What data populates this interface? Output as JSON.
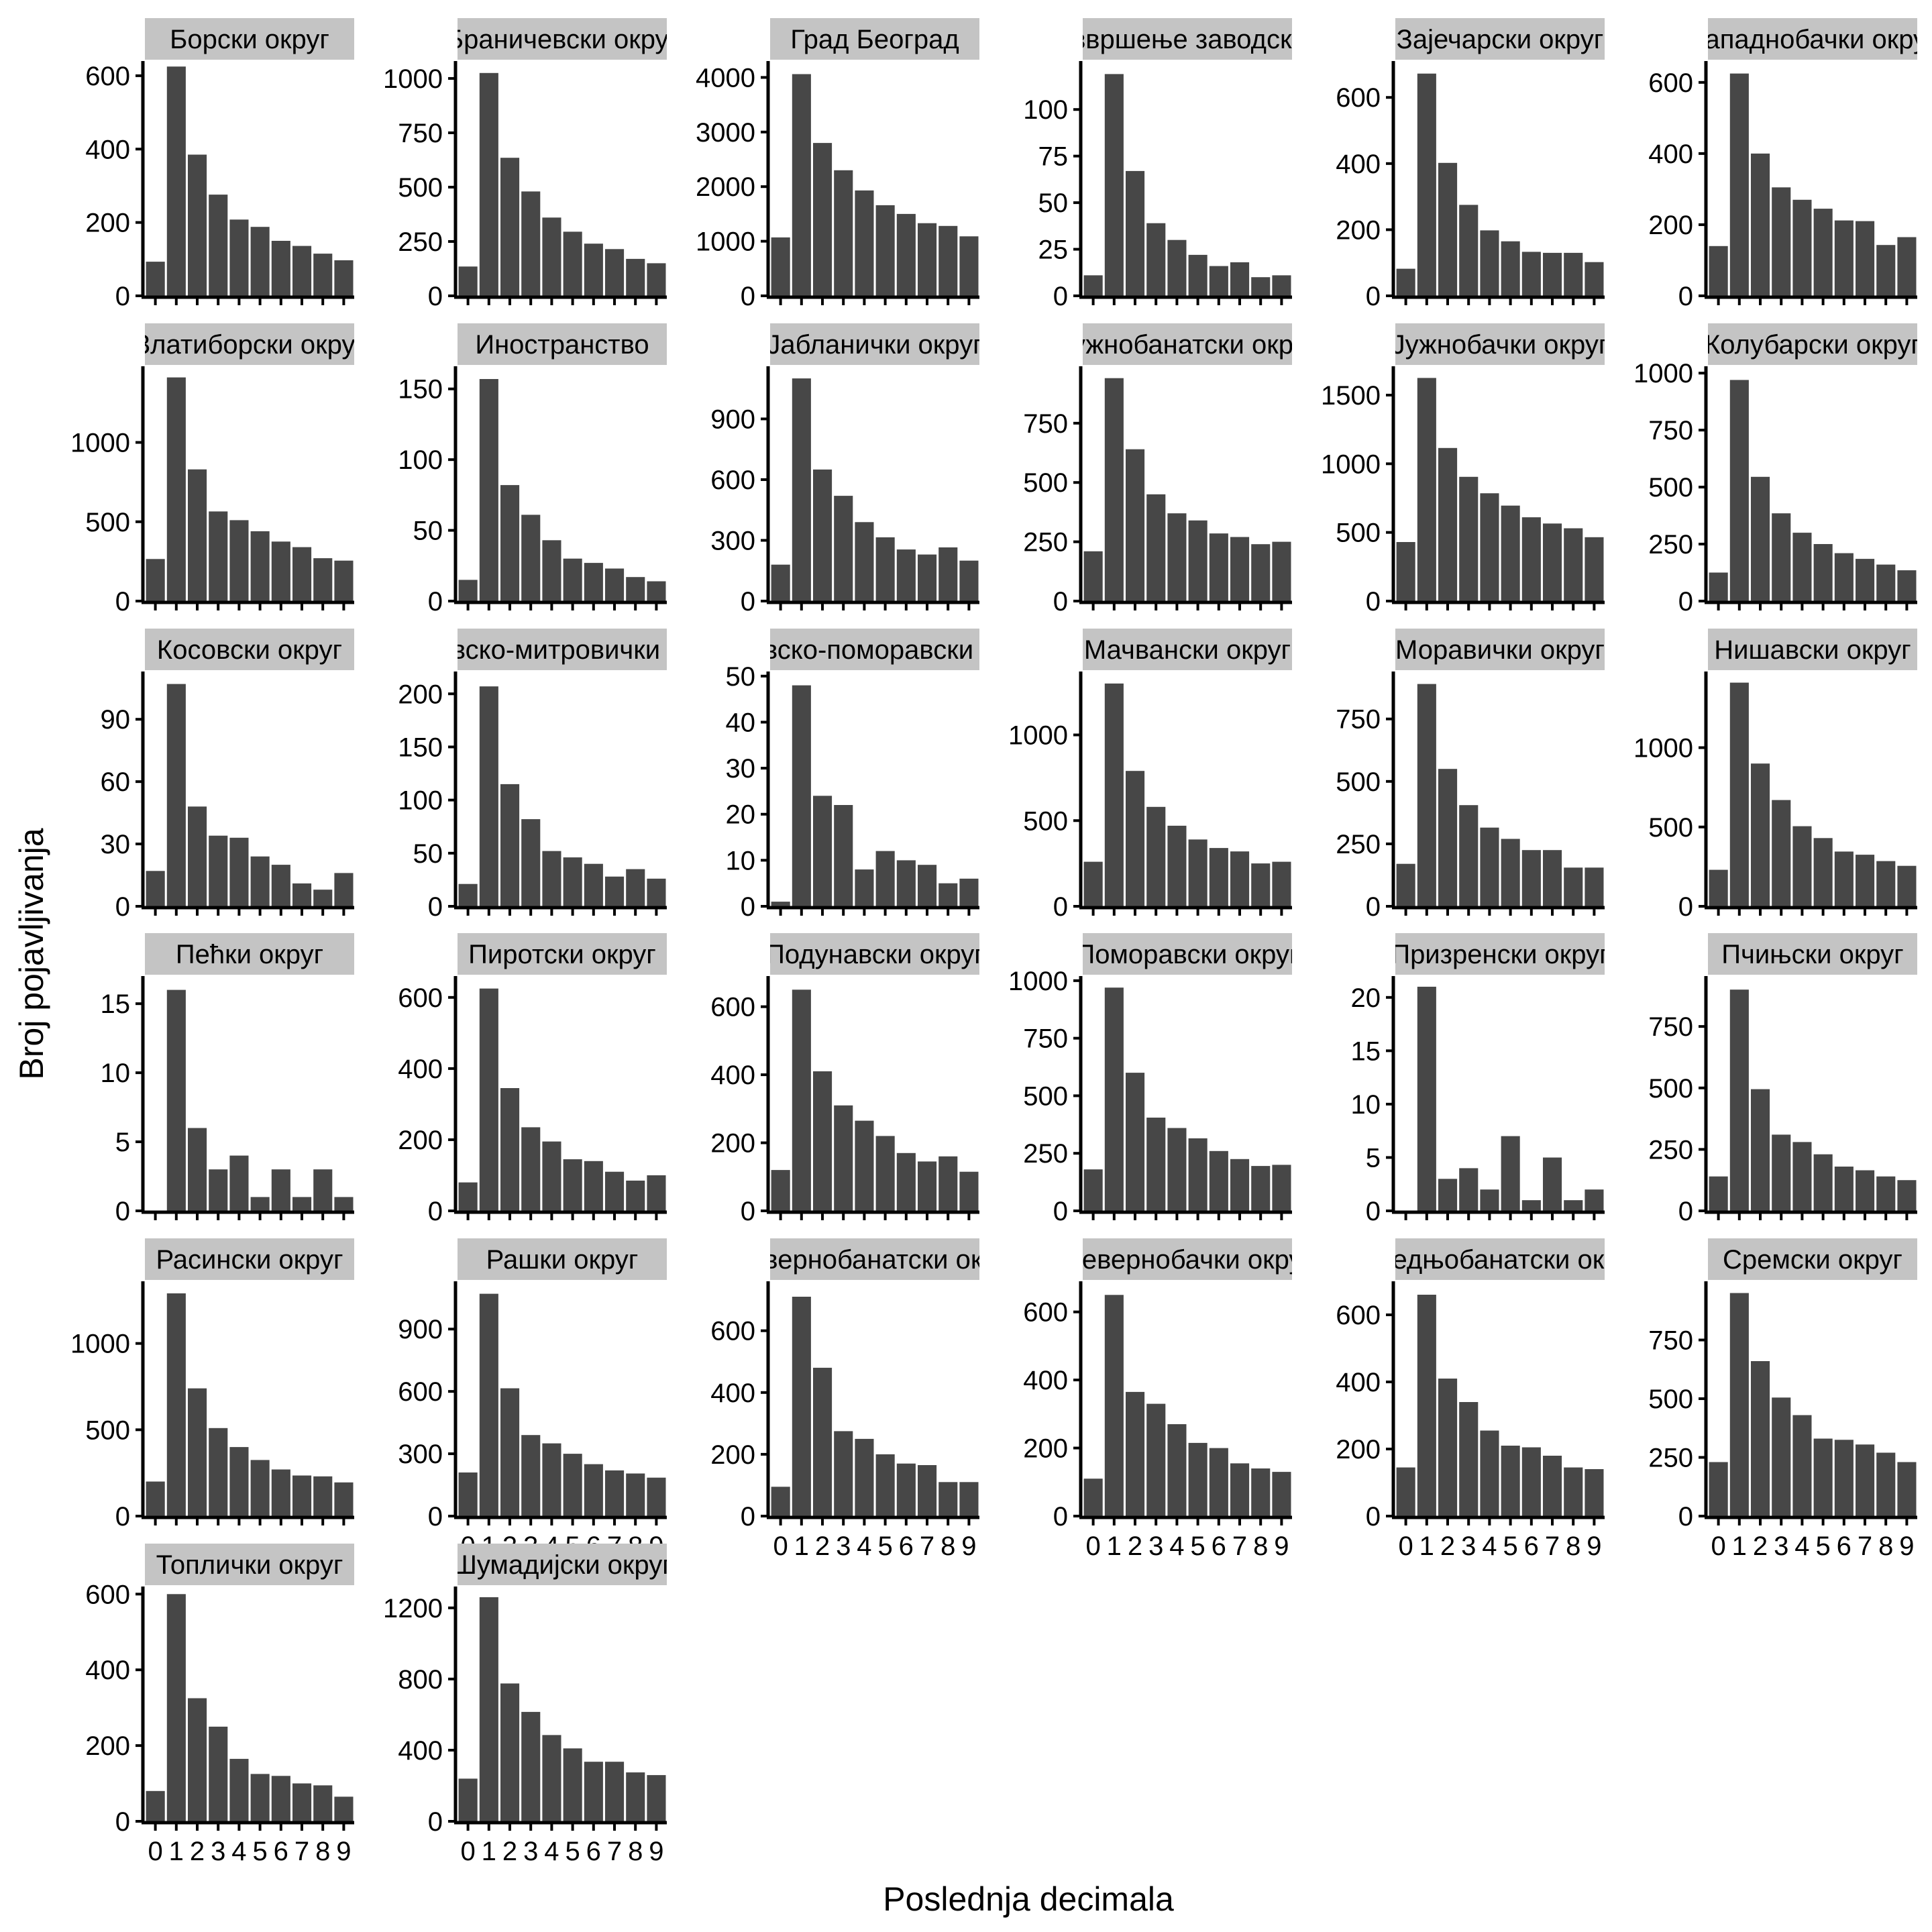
{
  "figure": {
    "xlabel": "Poslednja decimala",
    "ylabel": "Broj pojavljivanja",
    "colors": {
      "bar": "#474747",
      "strip": "#c4c4c4",
      "axis": "#000000",
      "background": "#ffffff"
    }
  },
  "chart_data": {
    "type": "bar",
    "categories": [
      "0",
      "1",
      "2",
      "3",
      "4",
      "5",
      "6",
      "7",
      "8",
      "9"
    ],
    "facet_layout": {
      "columns": 6,
      "rows": 7
    },
    "grid": false,
    "legend": "none",
    "panels": [
      {
        "title": "Борски округ",
        "yticks": [
          0,
          200,
          400,
          600
        ],
        "ylim": [
          0,
          640
        ],
        "values": [
          93,
          625,
          385,
          276,
          208,
          188,
          150,
          136,
          115,
          97
        ],
        "show_x": false
      },
      {
        "title": "Браничевски округ",
        "yticks": [
          0,
          250,
          500,
          750,
          1000
        ],
        "ylim": [
          0,
          1080
        ],
        "values": [
          135,
          1025,
          635,
          480,
          360,
          295,
          240,
          215,
          170,
          150
        ],
        "show_x": false
      },
      {
        "title": "Град Београд",
        "yticks": [
          0,
          1000,
          2000,
          3000,
          4000
        ],
        "ylim": [
          0,
          4300
        ],
        "values": [
          1070,
          4060,
          2800,
          2300,
          1930,
          1660,
          1500,
          1330,
          1280,
          1090
        ],
        "show_x": false
      },
      {
        "title": "Завод за извршење заводских санкција",
        "yticks": [
          0,
          25,
          50,
          75,
          100
        ],
        "ylim": [
          0,
          126
        ],
        "values": [
          11,
          119,
          67,
          39,
          30,
          22,
          16,
          18,
          10,
          11
        ],
        "show_x": false
      },
      {
        "title": "Зајечарски округ",
        "yticks": [
          0,
          200,
          400,
          600
        ],
        "ylim": [
          0,
          710
        ],
        "values": [
          82,
          672,
          402,
          275,
          198,
          165,
          133,
          130,
          130,
          102
        ],
        "show_x": false
      },
      {
        "title": "Западнобачки округ",
        "yticks": [
          0,
          200,
          400,
          600
        ],
        "ylim": [
          0,
          660
        ],
        "values": [
          140,
          625,
          400,
          305,
          270,
          245,
          212,
          210,
          143,
          165
        ],
        "show_x": false
      },
      {
        "title": "Златиборски округ",
        "yticks": [
          0,
          500,
          1000
        ],
        "ylim": [
          0,
          1480
        ],
        "values": [
          265,
          1410,
          830,
          565,
          510,
          440,
          375,
          340,
          270,
          255
        ],
        "show_x": false
      },
      {
        "title": "Иностранство",
        "yticks": [
          0,
          50,
          100,
          150
        ],
        "ylim": [
          0,
          166
        ],
        "values": [
          15,
          157,
          82,
          61,
          43,
          30,
          27,
          23,
          17,
          14
        ],
        "show_x": false
      },
      {
        "title": "Јабланички округ",
        "yticks": [
          0,
          300,
          600,
          900
        ],
        "ylim": [
          0,
          1160
        ],
        "values": [
          180,
          1100,
          650,
          520,
          390,
          315,
          255,
          230,
          265,
          200
        ],
        "show_x": false
      },
      {
        "title": "Јужнобанатски округ",
        "yticks": [
          0,
          250,
          500,
          750
        ],
        "ylim": [
          0,
          990
        ],
        "values": [
          210,
          940,
          640,
          450,
          370,
          340,
          285,
          270,
          240,
          250
        ],
        "show_x": false
      },
      {
        "title": "Јужнобачки округ",
        "yticks": [
          0,
          500,
          1000,
          1500
        ],
        "ylim": [
          0,
          1710
        ],
        "values": [
          430,
          1625,
          1115,
          905,
          785,
          695,
          610,
          565,
          530,
          465
        ],
        "show_x": false
      },
      {
        "title": "Колубарски округ",
        "yticks": [
          0,
          250,
          500,
          750,
          1000
        ],
        "ylim": [
          0,
          1030
        ],
        "values": [
          125,
          970,
          545,
          385,
          300,
          250,
          210,
          185,
          160,
          135
        ],
        "show_x": false
      },
      {
        "title": "Косовски округ",
        "yticks": [
          0,
          30,
          60,
          90
        ],
        "ylim": [
          0,
          113
        ],
        "values": [
          17,
          107,
          48,
          34,
          33,
          24,
          20,
          11,
          8,
          16
        ],
        "show_x": false
      },
      {
        "title": "Косовско-митровички округ",
        "yticks": [
          0,
          50,
          100,
          150,
          200
        ],
        "ylim": [
          0,
          221
        ],
        "values": [
          21,
          207,
          115,
          82,
          52,
          46,
          40,
          28,
          35,
          26
        ],
        "show_x": false
      },
      {
        "title": "Косовско-поморавски округ",
        "yticks": [
          0,
          10,
          20,
          30,
          40,
          50
        ],
        "ylim": [
          0,
          51
        ],
        "values": [
          1,
          48,
          24,
          22,
          8,
          12,
          10,
          9,
          5,
          6
        ],
        "show_x": false
      },
      {
        "title": "Мачвански округ",
        "yticks": [
          0,
          500,
          1000
        ],
        "ylim": [
          0,
          1370
        ],
        "values": [
          260,
          1300,
          790,
          580,
          470,
          390,
          340,
          320,
          250,
          260
        ],
        "show_x": false
      },
      {
        "title": "Моравички округ",
        "yticks": [
          0,
          250,
          500,
          750
        ],
        "ylim": [
          0,
          940
        ],
        "values": [
          170,
          890,
          550,
          405,
          315,
          270,
          225,
          225,
          155,
          155
        ],
        "show_x": false
      },
      {
        "title": "Нишавски округ",
        "yticks": [
          0,
          500,
          1000
        ],
        "ylim": [
          0,
          1480
        ],
        "values": [
          230,
          1410,
          900,
          670,
          505,
          430,
          345,
          325,
          285,
          255
        ],
        "show_x": false
      },
      {
        "title": "Пећки округ",
        "yticks": [
          0,
          5,
          10,
          15
        ],
        "ylim": [
          0,
          17
        ],
        "values": [
          0,
          16,
          6,
          3,
          4,
          1,
          3,
          1,
          3,
          1
        ],
        "show_x": false
      },
      {
        "title": "Пиротски округ",
        "yticks": [
          0,
          200,
          400,
          600
        ],
        "ylim": [
          0,
          660
        ],
        "values": [
          80,
          625,
          345,
          235,
          195,
          145,
          140,
          110,
          85,
          100
        ],
        "show_x": false
      },
      {
        "title": "Подунавски округ",
        "yticks": [
          0,
          200,
          400,
          600
        ],
        "ylim": [
          0,
          690
        ],
        "values": [
          120,
          650,
          410,
          310,
          265,
          220,
          170,
          145,
          160,
          115
        ],
        "show_x": false
      },
      {
        "title": "Поморавски округ",
        "yticks": [
          0,
          250,
          500,
          750,
          1000
        ],
        "ylim": [
          0,
          1020
        ],
        "values": [
          180,
          970,
          600,
          405,
          360,
          315,
          260,
          225,
          195,
          200
        ],
        "show_x": false
      },
      {
        "title": "Призренски округ",
        "yticks": [
          0,
          5,
          10,
          15,
          20
        ],
        "ylim": [
          0,
          22
        ],
        "values": [
          0,
          21,
          3,
          4,
          2,
          7,
          1,
          5,
          1,
          2
        ],
        "show_x": false
      },
      {
        "title": "Пчињски округ",
        "yticks": [
          0,
          250,
          500,
          750
        ],
        "ylim": [
          0,
          955
        ],
        "values": [
          140,
          900,
          495,
          310,
          280,
          230,
          180,
          165,
          140,
          125
        ],
        "show_x": false
      },
      {
        "title": "Расински округ",
        "yticks": [
          0,
          500,
          1000
        ],
        "ylim": [
          0,
          1360
        ],
        "values": [
          200,
          1290,
          740,
          510,
          400,
          325,
          270,
          235,
          230,
          195
        ],
        "show_x": false
      },
      {
        "title": "Рашки округ",
        "yticks": [
          0,
          300,
          600,
          900
        ],
        "ylim": [
          0,
          1130
        ],
        "values": [
          210,
          1070,
          615,
          390,
          350,
          300,
          250,
          220,
          205,
          185
        ],
        "show_x": true
      },
      {
        "title": "Севернобанатски округ",
        "yticks": [
          0,
          200,
          400,
          600
        ],
        "ylim": [
          0,
          760
        ],
        "values": [
          95,
          710,
          480,
          275,
          250,
          200,
          170,
          165,
          110,
          110
        ],
        "show_x": true
      },
      {
        "title": "Севернобачки округ",
        "yticks": [
          0,
          200,
          400,
          600
        ],
        "ylim": [
          0,
          690
        ],
        "values": [
          110,
          650,
          365,
          330,
          270,
          215,
          200,
          155,
          140,
          130
        ],
        "show_x": true
      },
      {
        "title": "Средњобанатски округ",
        "yticks": [
          0,
          200,
          400,
          600
        ],
        "ylim": [
          0,
          700
        ],
        "values": [
          145,
          660,
          410,
          340,
          255,
          210,
          205,
          180,
          145,
          140
        ],
        "show_x": true
      },
      {
        "title": "Сремски округ",
        "yticks": [
          0,
          250,
          500,
          750
        ],
        "ylim": [
          0,
          1000
        ],
        "values": [
          230,
          950,
          660,
          505,
          430,
          330,
          325,
          305,
          270,
          230
        ],
        "show_x": true
      },
      {
        "title": "Топлички округ",
        "yticks": [
          0,
          200,
          400,
          600
        ],
        "ylim": [
          0,
          620
        ],
        "values": [
          80,
          600,
          325,
          250,
          165,
          125,
          120,
          100,
          95,
          65
        ],
        "show_x": true
      },
      {
        "title": "Шумадијски округ",
        "yticks": [
          0,
          400,
          800,
          1200
        ],
        "ylim": [
          0,
          1320
        ],
        "values": [
          240,
          1260,
          775,
          615,
          485,
          410,
          335,
          335,
          275,
          260
        ],
        "show_x": true
      }
    ]
  }
}
